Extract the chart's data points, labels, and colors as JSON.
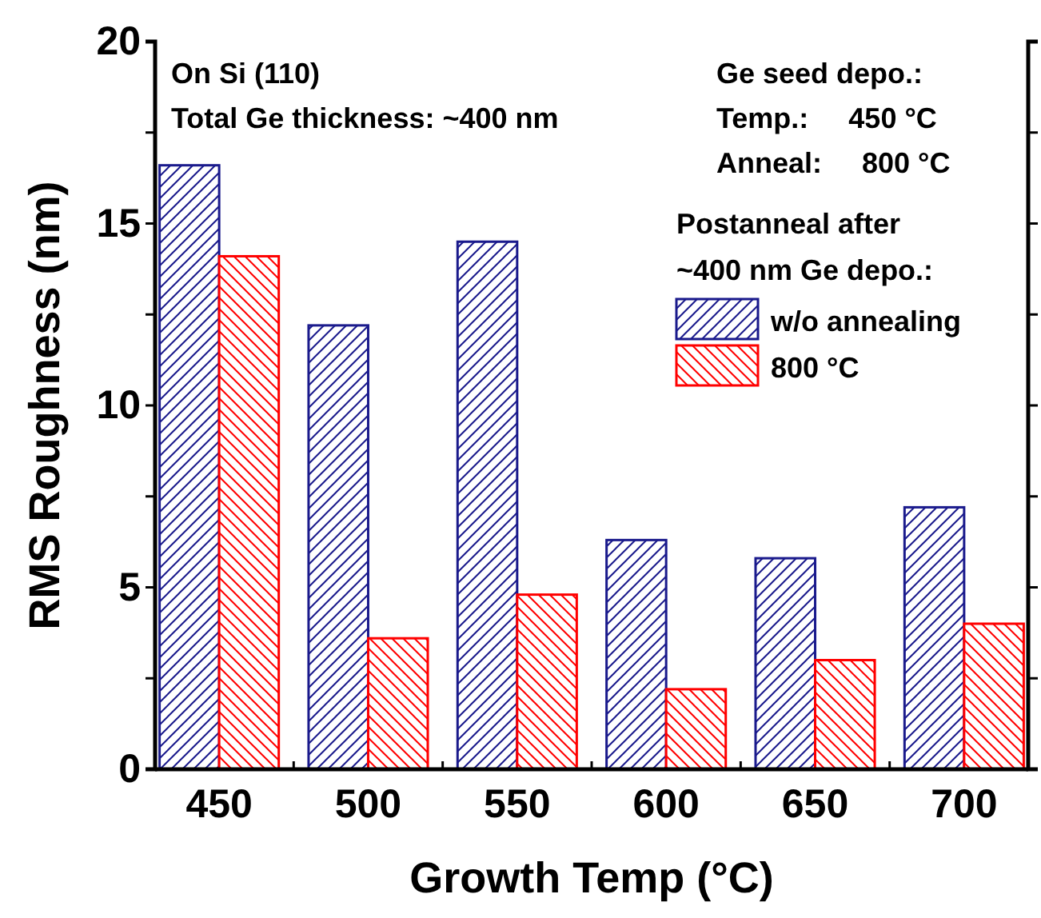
{
  "chart_data": {
    "type": "bar",
    "xlabel": "Growth Temp (°C)",
    "ylabel": "RMS Roughness (nm)",
    "categories": [
      "450",
      "500",
      "550",
      "600",
      "650",
      "700"
    ],
    "series": [
      {
        "name": "w/o annealing",
        "color": "#1a1a8c",
        "values": [
          16.6,
          12.2,
          14.5,
          6.3,
          5.8,
          7.2
        ]
      },
      {
        "name": "800 °C",
        "color": "#ff0000",
        "values": [
          14.1,
          3.6,
          4.8,
          2.2,
          3.0,
          4.0
        ]
      }
    ],
    "ylim": [
      0,
      20
    ],
    "yticks": [
      0,
      {
        "value": 2.5,
        "label": null
      },
      5,
      {
        "value": 7.5,
        "label": null
      },
      10,
      {
        "value": 12.5,
        "label": null
      },
      15,
      {
        "value": 17.5,
        "label": null
      },
      20
    ],
    "legend": "top right",
    "legend_title": "Postanneal after ~400 nm Ge depo.:",
    "annotations": [
      "On Si (110)",
      "Total Ge thickness: ~400 nm",
      "Ge seed depo.:",
      "Temp.:     450 °C",
      "Anneal:     800 °C"
    ]
  }
}
